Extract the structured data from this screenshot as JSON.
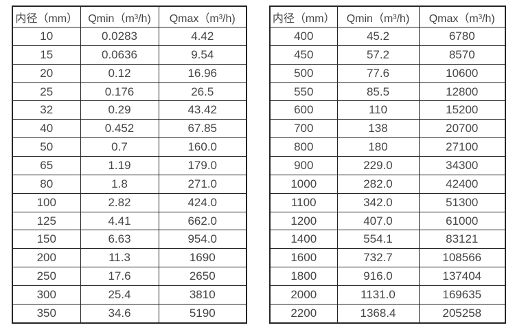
{
  "colors": {
    "background": "#ffffff",
    "text": "#454545",
    "border": "#262626"
  },
  "table_left": {
    "headers": [
      "内径（mm）",
      "Qmin（m³/h)",
      "Qmax（m³/h)"
    ],
    "rows": [
      [
        "10",
        "0.0283",
        "4.42"
      ],
      [
        "15",
        "0.0636",
        "9.54"
      ],
      [
        "20",
        "0.12",
        "16.96"
      ],
      [
        "25",
        "0.176",
        "26.5"
      ],
      [
        "32",
        "0.29",
        "43.42"
      ],
      [
        "40",
        "0.452",
        "67.85"
      ],
      [
        "50",
        "0.7",
        "160.0"
      ],
      [
        "65",
        "1.19",
        "179.0"
      ],
      [
        "80",
        "1.8",
        "271.0"
      ],
      [
        "100",
        "2.82",
        "424.0"
      ],
      [
        "125",
        "4.41",
        "662.0"
      ],
      [
        "150",
        "6.63",
        "954.0"
      ],
      [
        "200",
        "11.3",
        "1690"
      ],
      [
        "250",
        "17.6",
        "2650"
      ],
      [
        "300",
        "25.4",
        "3810"
      ],
      [
        "350",
        "34.6",
        "5190"
      ]
    ]
  },
  "table_right": {
    "headers": [
      "内径（mm）",
      "Qmin（m³/h)",
      "Qmax（m³/h)"
    ],
    "rows": [
      [
        "400",
        "45.2",
        "6780"
      ],
      [
        "450",
        "57.2",
        "8570"
      ],
      [
        "500",
        "77.6",
        "10600"
      ],
      [
        "550",
        "85.5",
        "12800"
      ],
      [
        "600",
        "110",
        "15200"
      ],
      [
        "700",
        "138",
        "20700"
      ],
      [
        "800",
        "180",
        "27100"
      ],
      [
        "900",
        "229.0",
        "34300"
      ],
      [
        "1000",
        "282.0",
        "42400"
      ],
      [
        "1100",
        "342.0",
        "51300"
      ],
      [
        "1200",
        "407.0",
        "61000"
      ],
      [
        "1400",
        "554.1",
        "83121"
      ],
      [
        "1600",
        "732.7",
        "108566"
      ],
      [
        "1800",
        "916.0",
        "137404"
      ],
      [
        "2000",
        "1131.0",
        "169635"
      ],
      [
        "2200",
        "1368.4",
        "205258"
      ]
    ]
  }
}
